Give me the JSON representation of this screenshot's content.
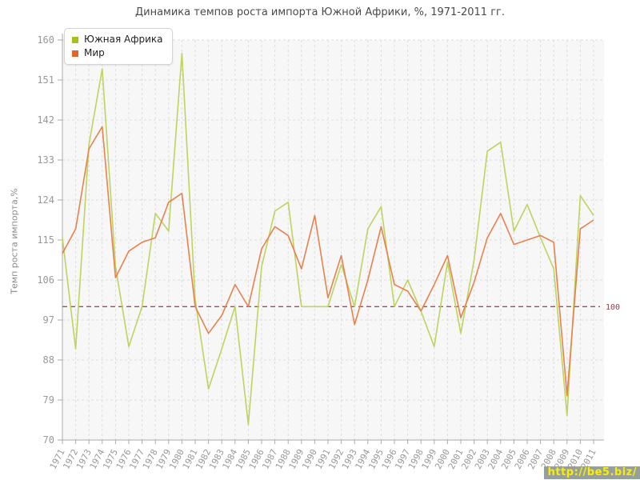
{
  "title": "Динамика темпов роста импорта Южной Африки, %, 1971-2011 гг.",
  "watermark": "http://be5.biz/",
  "y_axis": {
    "label": "Темп роста импорта,%",
    "ticks": [
      70,
      79,
      88,
      97,
      106,
      115,
      124,
      133,
      142,
      151,
      160
    ],
    "min": 70,
    "max": 160
  },
  "reference_line": {
    "value": 100,
    "label": "100",
    "line_color": "#a34d5e",
    "label_color": "#8b3e4a"
  },
  "legend": [
    {
      "label": "Южная Африка",
      "color": "#a3c21c"
    },
    {
      "label": "Мир",
      "color": "#e0662c"
    }
  ],
  "colors": {
    "plot_background": "#f7f7f7",
    "grid": "#dcdcdc",
    "axis": "#aaaaaa",
    "tick_text": "#999999",
    "title_text": "#4a4a4a"
  },
  "chart_data": {
    "type": "line",
    "x": [
      1971,
      1972,
      1973,
      1974,
      1975,
      1976,
      1977,
      1978,
      1979,
      1980,
      1981,
      1982,
      1983,
      1984,
      1985,
      1986,
      1987,
      1988,
      1989,
      1990,
      1991,
      1992,
      1993,
      1994,
      1995,
      1996,
      1997,
      1998,
      1999,
      2000,
      2001,
      2002,
      2003,
      2004,
      2005,
      2006,
      2007,
      2008,
      2009,
      2010,
      2011
    ],
    "series": [
      {
        "name": "Южная Африка",
        "color": "#bdd45e",
        "values": [
          115.5,
          90.5,
          136.5,
          153.5,
          109,
          91,
          100,
          121,
          117,
          157,
          101.5,
          81.5,
          90.5,
          100,
          73.5,
          109,
          121.5,
          123.5,
          100,
          100,
          100,
          109.5,
          100,
          117.5,
          122.5,
          100,
          106,
          99,
          91,
          110,
          94,
          110.5,
          135,
          137,
          117,
          123,
          115.5,
          108.5,
          75.5,
          125,
          120.5
        ]
      },
      {
        "name": "Мир",
        "color": "#e8814d",
        "values": [
          112,
          117.5,
          135.5,
          140.5,
          106.5,
          112.5,
          114.5,
          115.5,
          123.5,
          125.5,
          100,
          94,
          98,
          105,
          100,
          113,
          118,
          116,
          108.5,
          120.5,
          102,
          111.5,
          96,
          106,
          118,
          105,
          103.5,
          99,
          105,
          111.5,
          97.5,
          105.5,
          115.5,
          121,
          114,
          115,
          116,
          114.5,
          80,
          117.5,
          119.5
        ]
      }
    ],
    "title": "Динамика темпов роста импорта Южной Африки, %, 1971-2011 гг.",
    "xlabel": "",
    "ylabel": "Темп роста импорта,%",
    "ylim": [
      70,
      160
    ],
    "grid": true,
    "grid_style": "dashed",
    "legend_position": "top-left",
    "reference_value": 100
  }
}
